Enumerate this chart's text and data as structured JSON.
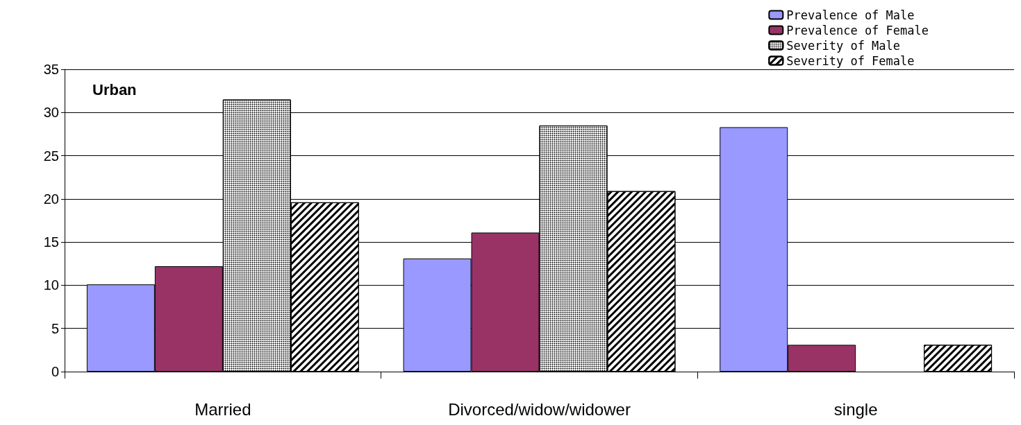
{
  "chart_data": {
    "type": "bar",
    "categories": [
      "Married",
      "Divorced/widow/widower",
      "single"
    ],
    "series": [
      {
        "name": "Prevalence of Male",
        "color": "#9999ff",
        "values": [
          10.1,
          13.1,
          28.3
        ]
      },
      {
        "name": "Prevalence of Female",
        "color": "#993366",
        "values": [
          12.2,
          16.1,
          3.1
        ]
      },
      {
        "name": "Severity of Male",
        "color": "#ffffff",
        "values": [
          31.5,
          28.5,
          null
        ]
      },
      {
        "name": "Severity of Female",
        "color": "#ffffff",
        "values": [
          19.6,
          20.9,
          3.1
        ]
      }
    ],
    "ylim": [
      0,
      35
    ],
    "yticks": [
      0,
      5,
      10,
      15,
      20,
      25,
      30,
      35
    ],
    "grid": "y",
    "legend": "top right",
    "annotations": [
      "Urban"
    ]
  }
}
